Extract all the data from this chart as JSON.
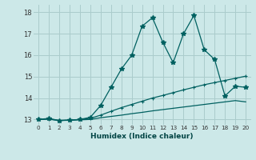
{
  "xlabel": "Humidex (Indice chaleur)",
  "bg_color": "#cce8e8",
  "grid_color": "#aacccc",
  "line_color": "#006060",
  "xlim": [
    -0.5,
    20.5
  ],
  "ylim": [
    12.75,
    18.35
  ],
  "yticks": [
    13,
    14,
    15,
    16,
    17,
    18
  ],
  "xticks": [
    0,
    1,
    2,
    3,
    4,
    5,
    6,
    7,
    8,
    9,
    10,
    11,
    12,
    13,
    14,
    15,
    16,
    17,
    18,
    19,
    20
  ],
  "main_x": [
    0,
    1,
    2,
    3,
    4,
    5,
    6,
    7,
    8,
    9,
    10,
    11,
    12,
    13,
    14,
    15,
    16,
    17,
    18,
    19,
    20
  ],
  "main_y": [
    13.0,
    13.05,
    12.95,
    12.97,
    13.0,
    13.1,
    13.65,
    14.5,
    15.35,
    16.0,
    17.35,
    17.75,
    16.6,
    15.65,
    17.0,
    17.85,
    16.25,
    15.8,
    14.1,
    14.55,
    14.5
  ],
  "line1_x": [
    0,
    1,
    2,
    3,
    4,
    5,
    6,
    7,
    8,
    9,
    10,
    11,
    12,
    13,
    14,
    15,
    16,
    17,
    18,
    19,
    20
  ],
  "line1_y": [
    13.0,
    13.02,
    12.95,
    12.97,
    13.0,
    13.05,
    13.2,
    13.38,
    13.55,
    13.7,
    13.85,
    14.0,
    14.12,
    14.25,
    14.38,
    14.5,
    14.62,
    14.72,
    14.82,
    14.92,
    15.02
  ],
  "line2_x": [
    0,
    1,
    2,
    3,
    4,
    5,
    6,
    7,
    8,
    9,
    10,
    11,
    12,
    13,
    14,
    15,
    16,
    17,
    18,
    19,
    20
  ],
  "line2_y": [
    13.0,
    13.01,
    12.95,
    12.96,
    12.98,
    13.0,
    13.08,
    13.14,
    13.2,
    13.27,
    13.33,
    13.4,
    13.46,
    13.52,
    13.58,
    13.64,
    13.7,
    13.76,
    13.82,
    13.88,
    13.82
  ]
}
